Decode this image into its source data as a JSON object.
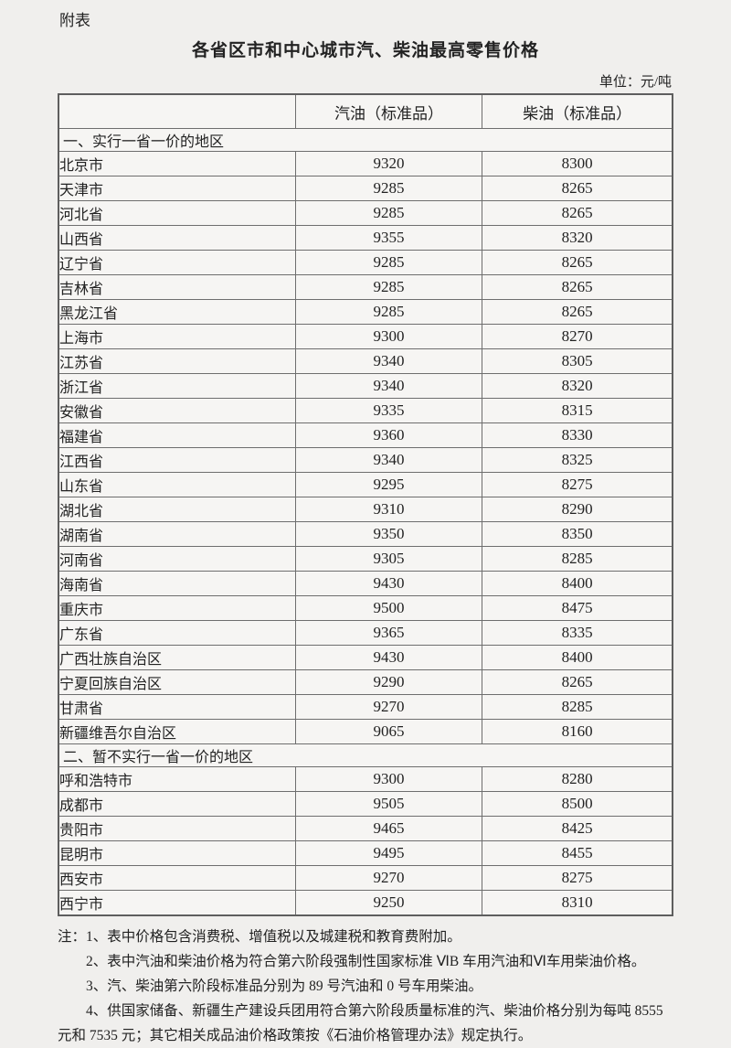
{
  "page": {
    "appendix_label": "附表",
    "title": "各省区市和中心城市汽、柴油最高零售价格",
    "unit_label": "单位：元/吨"
  },
  "table": {
    "columns": [
      "",
      "汽油（标准品）",
      "柴油（标准品）"
    ],
    "sections": [
      {
        "header": "一、实行一省一价的地区",
        "rows": [
          {
            "region": "北京市",
            "gasoline": "9320",
            "diesel": "8300"
          },
          {
            "region": "天津市",
            "gasoline": "9285",
            "diesel": "8265"
          },
          {
            "region": "河北省",
            "gasoline": "9285",
            "diesel": "8265"
          },
          {
            "region": "山西省",
            "gasoline": "9355",
            "diesel": "8320"
          },
          {
            "region": "辽宁省",
            "gasoline": "9285",
            "diesel": "8265"
          },
          {
            "region": "吉林省",
            "gasoline": "9285",
            "diesel": "8265"
          },
          {
            "region": "黑龙江省",
            "gasoline": "9285",
            "diesel": "8265"
          },
          {
            "region": "上海市",
            "gasoline": "9300",
            "diesel": "8270"
          },
          {
            "region": "江苏省",
            "gasoline": "9340",
            "diesel": "8305"
          },
          {
            "region": "浙江省",
            "gasoline": "9340",
            "diesel": "8320"
          },
          {
            "region": "安徽省",
            "gasoline": "9335",
            "diesel": "8315"
          },
          {
            "region": "福建省",
            "gasoline": "9360",
            "diesel": "8330"
          },
          {
            "region": "江西省",
            "gasoline": "9340",
            "diesel": "8325"
          },
          {
            "region": "山东省",
            "gasoline": "9295",
            "diesel": "8275"
          },
          {
            "region": "湖北省",
            "gasoline": "9310",
            "diesel": "8290"
          },
          {
            "region": "湖南省",
            "gasoline": "9350",
            "diesel": "8350"
          },
          {
            "region": "河南省",
            "gasoline": "9305",
            "diesel": "8285"
          },
          {
            "region": "海南省",
            "gasoline": "9430",
            "diesel": "8400"
          },
          {
            "region": "重庆市",
            "gasoline": "9500",
            "diesel": "8475"
          },
          {
            "region": "广东省",
            "gasoline": "9365",
            "diesel": "8335"
          },
          {
            "region": "广西壮族自治区",
            "gasoline": "9430",
            "diesel": "8400"
          },
          {
            "region": "宁夏回族自治区",
            "gasoline": "9290",
            "diesel": "8265"
          },
          {
            "region": "甘肃省",
            "gasoline": "9270",
            "diesel": "8285"
          },
          {
            "region": "新疆维吾尔自治区",
            "gasoline": "9065",
            "diesel": "8160"
          }
        ]
      },
      {
        "header": "二、暂不实行一省一价的地区",
        "rows": [
          {
            "region": "呼和浩特市",
            "gasoline": "9300",
            "diesel": "8280"
          },
          {
            "region": "成都市",
            "gasoline": "9505",
            "diesel": "8500"
          },
          {
            "region": "贵阳市",
            "gasoline": "9465",
            "diesel": "8425"
          },
          {
            "region": "昆明市",
            "gasoline": "9495",
            "diesel": "8455"
          },
          {
            "region": "西安市",
            "gasoline": "9270",
            "diesel": "8275"
          },
          {
            "region": "西宁市",
            "gasoline": "9250",
            "diesel": "8310"
          }
        ]
      }
    ]
  },
  "notes": [
    "注：1、表中价格包含消费税、增值税以及城建税和教育费附加。",
    "2、表中汽油和柴油价格为符合第六阶段强制性国家标准 ⅥB 车用汽油和Ⅵ车用柴油价格。",
    "3、汽、柴油第六阶段标准品分别为 89 号汽油和 0 号车用柴油。",
    "4、供国家储备、新疆生产建设兵团用符合第六阶段质量标准的汽、柴油价格分别为每吨 8555 元和 7535 元；其它相关成品油价格政策按《石油价格管理办法》规定执行。"
  ]
}
